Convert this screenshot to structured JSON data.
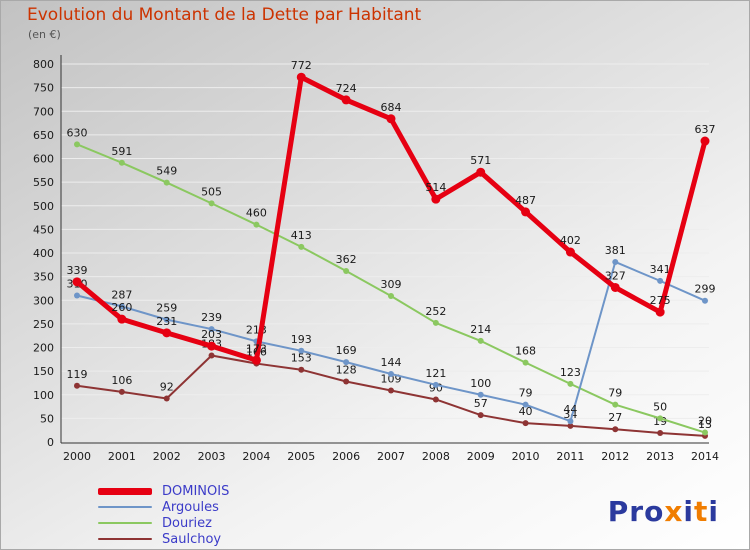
{
  "title": "Evolution du Montant de la Dette par Habitant",
  "subtitle": "(en €)",
  "colors": {
    "title": "#cc3300",
    "subtitle": "#555555",
    "legend_text": "#3b3bc8",
    "axis": "#333333",
    "grid": "#ededed",
    "label_text": "#1a1a1a",
    "logo_blue": "#2b3a9e",
    "logo_orange": "#f07d00"
  },
  "chart_data": {
    "type": "line",
    "x": [
      "2000",
      "2001",
      "2002",
      "2003",
      "2004",
      "2005",
      "2006",
      "2007",
      "2008",
      "2009",
      "2010",
      "2011",
      "2012",
      "2013",
      "2014"
    ],
    "series": [
      {
        "name": "DOMINOIS",
        "color": "#e60012",
        "line_width": 5,
        "values": [
          339,
          260,
          231,
          203,
          173,
          772,
          724,
          684,
          514,
          571,
          487,
          402,
          327,
          275,
          637
        ]
      },
      {
        "name": "Argoules",
        "color": "#6e95c8",
        "line_width": 2,
        "values": [
          310,
          287,
          259,
          239,
          213,
          193,
          169,
          144,
          121,
          100,
          79,
          44,
          381,
          341,
          299
        ]
      },
      {
        "name": "Douriez",
        "color": "#8bc860",
        "line_width": 2,
        "values": [
          630,
          591,
          549,
          505,
          460,
          413,
          362,
          309,
          252,
          214,
          168,
          123,
          79,
          50,
          20
        ]
      },
      {
        "name": "Saulchoy",
        "color": "#8e3434",
        "line_width": 2,
        "values": [
          119,
          106,
          92,
          183,
          166,
          153,
          128,
          109,
          90,
          57,
          40,
          34,
          27,
          19,
          13
        ]
      }
    ],
    "ylim": [
      0,
      800
    ],
    "ytick_step": 50,
    "grid": true,
    "legend_position": "bottom-left",
    "show_point_labels": true
  },
  "logo": {
    "text": "Proxiti",
    "letter_colors": [
      "blue",
      "blue",
      "blue",
      "orange",
      "blue",
      "orange",
      "blue"
    ]
  }
}
